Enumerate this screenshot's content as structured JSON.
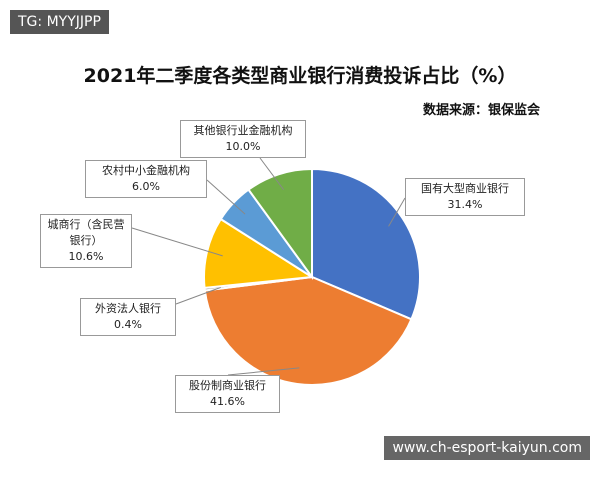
{
  "chart_data": {
    "type": "pie",
    "title": "2021年二季度各类型商业银行消费投诉占比（%）",
    "subtitle": "数据来源：银保监会",
    "categories": [
      "国有大型商业银行",
      "股份制商业银行",
      "外资法人银行",
      "城商行（含民营银行）",
      "农村中小金融机构",
      "其他银行业金融机构"
    ],
    "values": [
      31.4,
      41.6,
      0.4,
      10.6,
      6.0,
      10.0
    ],
    "value_labels": [
      "31.4%",
      "41.6%",
      "0.4%",
      "10.6%",
      "6.0%",
      "10.0%"
    ],
    "colors": [
      "#4472c4",
      "#ed7d31",
      "#a5a5a5",
      "#ffc000",
      "#5b9bd5",
      "#70ad47"
    ]
  },
  "watermarks": {
    "top_left": "TG: MYYJJPP",
    "bottom_right": "www.ch-esport-kaiyun.com"
  }
}
